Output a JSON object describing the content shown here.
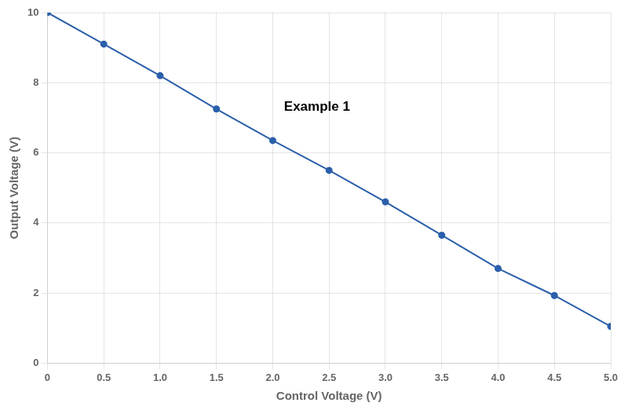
{
  "chart_data": {
    "type": "line",
    "x": [
      0,
      0.5,
      1.0,
      1.5,
      2.0,
      2.5,
      3.0,
      3.5,
      4.0,
      4.5,
      5.0
    ],
    "values": [
      10.0,
      9.1,
      8.2,
      7.25,
      6.35,
      5.5,
      4.6,
      3.65,
      2.7,
      1.93,
      1.05
    ],
    "color": "#2b5faa",
    "marker": "circle",
    "xlabel": "Control Voltage (V)",
    "ylabel": "Output Voltage (V)",
    "annotations": [
      "Example 1"
    ],
    "xlim": [
      0,
      5.0
    ],
    "ylim": [
      0,
      10.0
    ],
    "xticks": [
      0,
      0.5,
      {
        "value": 1.0,
        "label": "1.0"
      },
      1.5,
      {
        "value": 2.0,
        "label": "2.0"
      },
      2.5,
      {
        "value": 3.0,
        "label": "3.0"
      },
      3.5,
      {
        "value": 4.0,
        "label": "4.0"
      },
      4.5,
      {
        "value": 5.0,
        "label": "5.0"
      }
    ],
    "yticks": [
      0,
      2,
      4,
      6,
      8,
      10
    ],
    "grid": true
  }
}
